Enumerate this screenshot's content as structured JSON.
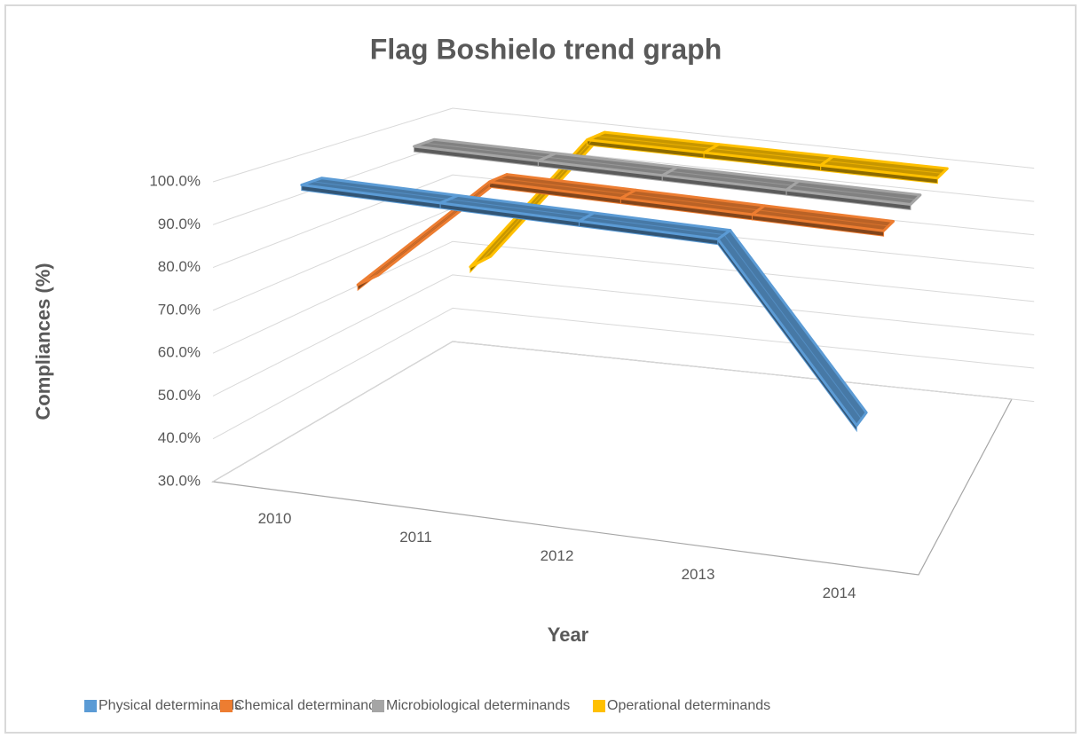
{
  "chart_data": {
    "type": "line3d",
    "title": "Flag Boshielo trend graph",
    "y_label": "Compliances (%)",
    "x_label": "Year",
    "categories": [
      "2010",
      "2011",
      "2012",
      "2013",
      "2014"
    ],
    "series": [
      {
        "name": "Physical determinands",
        "color": "#5b9bd5",
        "values": [
          100,
          100,
          100,
          100,
          60
        ]
      },
      {
        "name": "Chemical determinands",
        "color": "#ed7d31",
        "values": [
          70,
          100,
          100,
          100,
          100
        ]
      },
      {
        "name": "Microbiological determinands",
        "color": "#a5a5a5",
        "values": [
          100,
          100,
          100,
          100,
          100
        ]
      },
      {
        "name": "Operational determinands",
        "color": "#ffc000",
        "values": [
          60,
          100,
          100,
          100,
          100
        ]
      }
    ],
    "ylim": [
      30,
      100
    ],
    "yticks": [
      {
        "value": 30,
        "label": "30.0%"
      },
      {
        "value": 40,
        "label": "40.0%"
      },
      {
        "value": 50,
        "label": "50.0%"
      },
      {
        "value": 60,
        "label": "60.0%"
      },
      {
        "value": 70,
        "label": "70.0%"
      },
      {
        "value": 80,
        "label": "80.0%"
      },
      {
        "value": 90,
        "label": "90.0%"
      },
      {
        "value": 100,
        "label": "100.0%"
      }
    ],
    "grid": true
  }
}
